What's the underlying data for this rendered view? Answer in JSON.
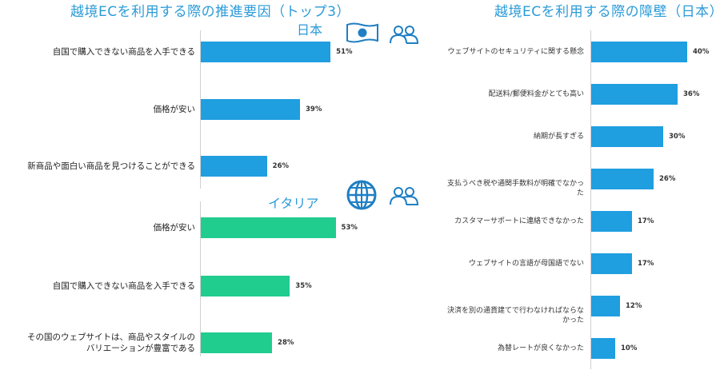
{
  "colors": {
    "blue": "#1f9ee0",
    "green": "#21cc8f",
    "title": "#2b9bd8"
  },
  "left": {
    "title": "越境ECを利用する際の推進要因（トップ3）",
    "icons": [
      "japan-flag-icon",
      "people-icon",
      "globe-icon",
      "people-icon"
    ]
  },
  "right": {
    "title": "越境ECを利用する際の障壁（日本）"
  },
  "chart_data": [
    {
      "type": "bar",
      "orientation": "horizontal",
      "title": "越境ECを利用する際の推進要因（トップ3）",
      "subtitle": "日本",
      "categories": [
        "自国で購入できない商品を入手できる",
        "価格が安い",
        "新商品や面白い商品を見つけることができる"
      ],
      "values": [
        51,
        39,
        26
      ],
      "value_labels": [
        "51%",
        "39%",
        "26%"
      ],
      "color": "#1f9ee0",
      "xlim": [
        0,
        100
      ]
    },
    {
      "type": "bar",
      "orientation": "horizontal",
      "subtitle": "イタリア",
      "categories": [
        "価格が安い",
        "自国で購入できない商品を入手できる",
        "その国のウェブサイトは、商品やスタイルの\nバリエーションが豊富である"
      ],
      "values": [
        53,
        35,
        28
      ],
      "value_labels": [
        "53%",
        "35%",
        "28%"
      ],
      "color": "#21cc8f",
      "xlim": [
        0,
        100
      ]
    },
    {
      "type": "bar",
      "orientation": "horizontal",
      "title": "越境ECを利用する際の障壁（日本）",
      "categories": [
        "ウェブサイトのセキュリティに関する懸念",
        "配送料/郵便料金がとても高い",
        "納期が長すぎる",
        "支払うべき税や通関手数料が明確でなかっ\nた",
        "カスタマーサポートに連絡できなかった",
        "ウェブサイトの言語が母国語でない",
        "決済を別の通貨建てで行わなければならな\nかった",
        "為替レートが良くなかった"
      ],
      "values": [
        40,
        36,
        30,
        26,
        17,
        17,
        12,
        10
      ],
      "value_labels": [
        "40%",
        "36%",
        "30%",
        "26%",
        "17%",
        "17%",
        "12%",
        "10%"
      ],
      "color": "#1f9ee0",
      "xlim": [
        0,
        100
      ]
    }
  ]
}
